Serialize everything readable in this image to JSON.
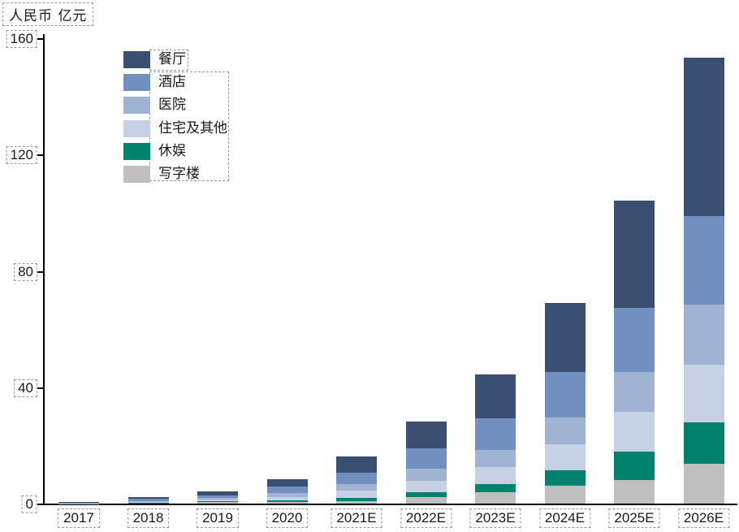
{
  "axis_title": "人民币 亿元",
  "chart_data": {
    "type": "bar",
    "stacked": true,
    "title": "",
    "ylabel": "人民币 亿元",
    "xlabel": "",
    "ylim": [
      0,
      160
    ],
    "yticks": [
      0,
      40,
      80,
      120,
      160
    ],
    "grid": false,
    "legend_position": "upper-left-inside",
    "categories": [
      "2017",
      "2018",
      "2019",
      "2020",
      "2021E",
      "2022E",
      "2023E",
      "2024E",
      "2025E",
      "2026E"
    ],
    "series": [
      {
        "name": "餐厅",
        "color": "#3b4f73",
        "values": [
          0.2,
          0.4,
          1.3,
          2.4,
          5.5,
          9.3,
          14.9,
          24.0,
          37.0,
          54.4
        ]
      },
      {
        "name": "酒店",
        "color": "#718fbf",
        "values": [
          0.1,
          1.0,
          1.0,
          2.2,
          4.0,
          7.0,
          10.9,
          15.4,
          21.9,
          30.4
        ]
      },
      {
        "name": "医院",
        "color": "#a1b3d3",
        "values": [
          0.1,
          0.2,
          0.6,
          1.4,
          2.2,
          4.2,
          5.9,
          9.3,
          13.8,
          20.7
        ]
      },
      {
        "name": "住宅及其他",
        "color": "#c7d1e5",
        "values": [
          0.0,
          0.2,
          0.5,
          1.2,
          2.5,
          3.7,
          5.8,
          8.9,
          13.5,
          20.0
        ]
      },
      {
        "name": "休娱",
        "color": "#00826f",
        "values": [
          0.0,
          0.1,
          0.3,
          0.6,
          1.2,
          1.8,
          2.8,
          5.4,
          9.8,
          14.0
        ]
      },
      {
        "name": "写字楼",
        "color": "#bfbfbf",
        "values": [
          0.1,
          0.2,
          0.5,
          0.5,
          0.8,
          2.2,
          4.0,
          6.1,
          8.2,
          13.8
        ]
      }
    ],
    "axis_color": "#000000",
    "text_color": "#1a1a1a",
    "annotation_box_color": "#9a9a9a"
  }
}
